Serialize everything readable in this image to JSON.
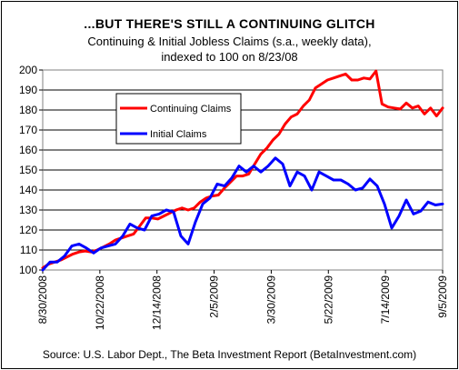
{
  "chart_data": {
    "type": "line",
    "title": "...BUT THERE'S STILL A CONTINUING GLITCH",
    "subtitle_lines": [
      "Continuing & Initial Jobless Claims (s.a., weekly data),",
      "indexed to 100 on 8/23/08"
    ],
    "source": "Source: U.S. Labor Dept., The Beta Investment Report (BetaInvestment.com)",
    "xlabel": "",
    "ylabel": "",
    "ylim": [
      100,
      200
    ],
    "y_ticks": [
      100,
      110,
      120,
      130,
      140,
      150,
      160,
      170,
      180,
      190,
      200
    ],
    "x_tick_labels": [
      "8/30/2008",
      "10/22/2008",
      "12/14/2008",
      "2/5/2009",
      "3/30/2009",
      "5/22/2009",
      "7/14/2009",
      "9/5/2009"
    ],
    "grid": "horizontal",
    "legend_placement": "upper-left-inside",
    "series": [
      {
        "name": "Continuing Claims",
        "color": "#ff0000",
        "values": [
          101,
          103,
          104,
          105,
          106.5,
          108,
          109,
          109.5,
          109,
          110,
          111.5,
          113,
          115,
          116,
          117,
          118,
          122,
          126,
          126,
          125.5,
          127,
          128.5,
          130,
          131,
          130,
          131,
          134,
          136,
          137,
          137.5,
          141,
          144,
          147,
          147,
          148,
          153,
          158,
          161,
          165,
          168,
          173,
          176.5,
          178,
          182,
          185,
          191,
          193,
          195,
          196,
          197,
          198,
          195,
          195,
          196,
          195.5,
          199.5,
          183,
          181.5,
          181,
          180.5,
          183.5,
          181,
          182,
          178,
          181,
          177,
          181
        ]
      },
      {
        "name": "Initial Claims",
        "color": "#0000ff",
        "values": [
          100,
          104,
          104,
          107,
          112,
          113,
          111,
          108.5,
          111,
          112,
          113,
          117,
          123,
          121,
          120,
          127,
          128,
          130,
          129,
          117,
          113,
          124,
          133,
          136,
          143,
          142,
          146,
          152,
          149,
          152,
          149,
          152,
          156,
          153,
          142,
          149,
          147,
          140,
          149,
          147,
          145,
          145,
          143,
          140,
          141,
          145.5,
          142,
          133,
          121,
          127,
          135,
          128,
          129.5,
          134,
          132.5,
          133
        ]
      }
    ]
  }
}
